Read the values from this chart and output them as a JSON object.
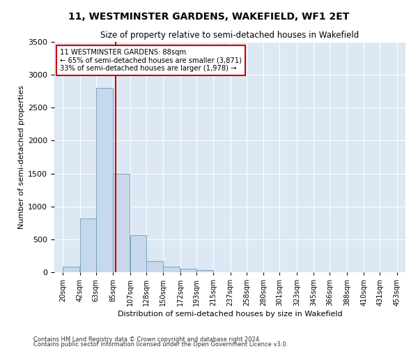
{
  "title": "11, WESTMINSTER GARDENS, WAKEFIELD, WF1 2ET",
  "subtitle": "Size of property relative to semi-detached houses in Wakefield",
  "xlabel": "Distribution of semi-detached houses by size in Wakefield",
  "ylabel": "Number of semi-detached properties",
  "footnote1": "Contains HM Land Registry data © Crown copyright and database right 2024.",
  "footnote2": "Contains public sector information licensed under the Open Government Licence v3.0.",
  "annotation_title": "11 WESTMINSTER GARDENS: 88sqm",
  "annotation_line1": "← 65% of semi-detached houses are smaller (3,871)",
  "annotation_line2": "33% of semi-detached houses are larger (1,978) →",
  "property_size": 88,
  "bin_edges": [
    20,
    42,
    63,
    85,
    107,
    128,
    150,
    172,
    193,
    215,
    237,
    258,
    280,
    301,
    323,
    345,
    366,
    388,
    410,
    431,
    453
  ],
  "bin_labels": [
    "20sqm",
    "42sqm",
    "63sqm",
    "85sqm",
    "107sqm",
    "128sqm",
    "150sqm",
    "172sqm",
    "193sqm",
    "215sqm",
    "237sqm",
    "258sqm",
    "280sqm",
    "301sqm",
    "323sqm",
    "345sqm",
    "366sqm",
    "388sqm",
    "410sqm",
    "431sqm",
    "453sqm"
  ],
  "bar_heights": [
    80,
    820,
    2800,
    1500,
    560,
    175,
    80,
    55,
    30,
    5,
    5,
    2,
    2,
    2,
    2,
    2,
    2,
    2,
    2,
    2
  ],
  "bar_color": "#c8d8ec",
  "bar_edge_color": "#7099bb",
  "line_color": "#cc0000",
  "annotation_box_color": "#cc0000",
  "background_color": "#dce8f4",
  "ylim": [
    0,
    3500
  ],
  "xlim": [
    9,
    464
  ]
}
